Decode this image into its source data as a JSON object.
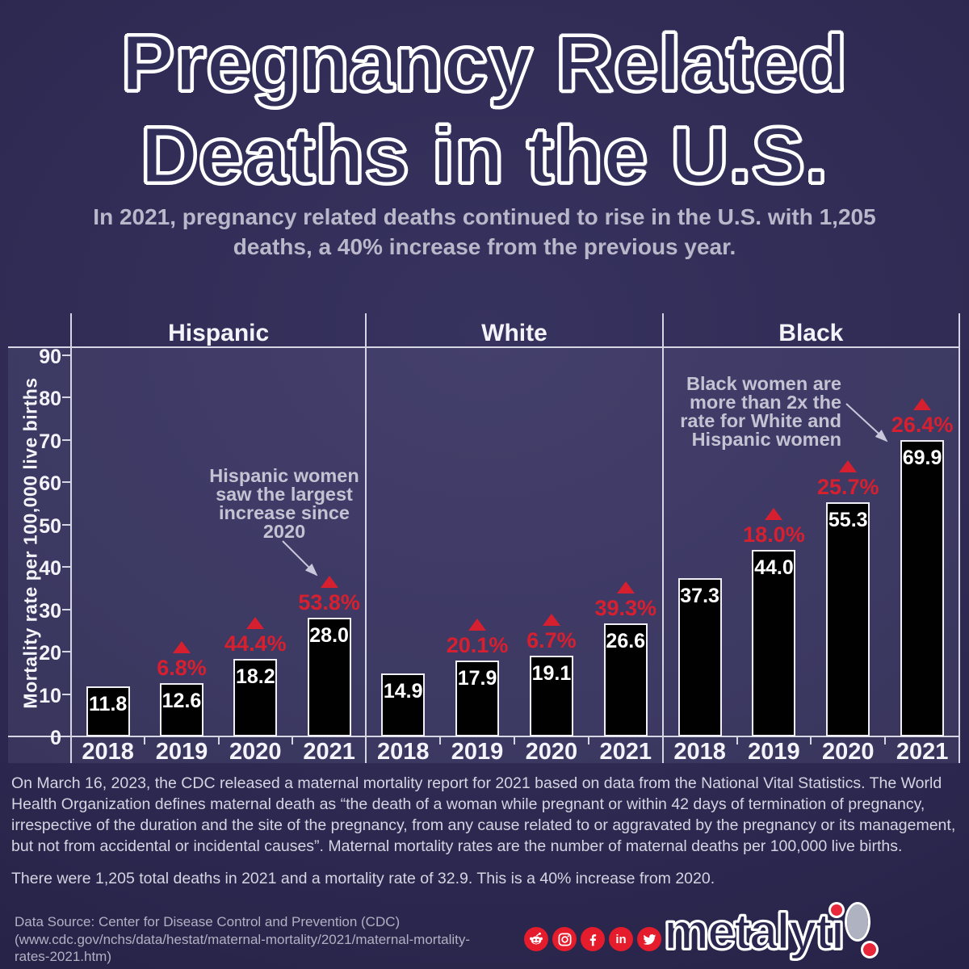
{
  "title": {
    "line1": "Pregnancy Related",
    "line2": "Deaths in the U.S."
  },
  "subtitle": "In 2021, pregnancy related deaths continued to rise in the U.S. with 1,205 deaths, a 40% increase from the previous year.",
  "chart_data": {
    "type": "bar",
    "ylabel": "Mortality rate per 100,000 live births",
    "ylim": [
      0,
      90
    ],
    "ytick_interval": 10,
    "grid": false,
    "categories": [
      "2018",
      "2019",
      "2020",
      "2021"
    ],
    "groups": [
      {
        "label": "Hispanic",
        "values": [
          11.8,
          12.6,
          18.2,
          28.0
        ],
        "pct_change": [
          "",
          "6.8%",
          "44.4%",
          "53.8%"
        ]
      },
      {
        "label": "White",
        "values": [
          14.9,
          17.9,
          19.1,
          26.6
        ],
        "pct_change": [
          "",
          "20.1%",
          "6.7%",
          "39.3%"
        ]
      },
      {
        "label": "Black",
        "values": [
          37.3,
          44.0,
          55.3,
          69.9
        ],
        "pct_change": [
          "",
          "18.0%",
          "25.7%",
          "26.4%"
        ]
      }
    ],
    "annotations": [
      {
        "id": "hispanic-note",
        "lines": [
          "Hispanic women",
          "saw the largest",
          "increase since",
          "2020"
        ]
      },
      {
        "id": "black-note",
        "lines": [
          "Black women are",
          "more than 2x the",
          "rate for White and",
          "Hispanic women"
        ]
      }
    ],
    "bar_color": "#010101",
    "increase_color": "#d7202f",
    "axis_line_color": "#d6d5e4",
    "annotation_color": "#c5c3d3"
  },
  "notes": {
    "paragraph1": "On March 16, 2023, the CDC released a maternal mortality report for 2021 based on data from the National Vital Statistics. The World Health Organization defines maternal death as “the death of a woman while pregnant or within 42 days of termination of pregnancy, irrespective of the duration and the site of the pregnancy, from any cause related to or aggravated by the pregnancy or its management, but not from accidental or incidental causes”. Maternal mortality rates are the number of maternal deaths per 100,000 live births.",
    "paragraph2": "There were 1,205 total deaths in 2021 and a mortality rate of 32.9. This is a 40% increase from 2020."
  },
  "footer": {
    "data_source_lines": [
      "Data Source: Center for Disease Control and Prevention (CDC)",
      "(www.cdc.gov/nchs/data/hestat/maternal-mortality/2021/maternal-mortality-",
      "rates-2021.htm)"
    ],
    "social_icons": [
      "reddit-icon",
      "instagram-icon",
      "facebook-icon",
      "linkedin-icon",
      "twitter-icon"
    ],
    "social_color": "#e41c2c",
    "logo_text": "metalytiq"
  }
}
